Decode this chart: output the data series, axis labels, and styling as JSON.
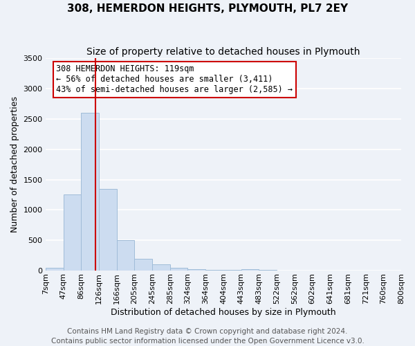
{
  "title": "308, HEMERDON HEIGHTS, PLYMOUTH, PL7 2EY",
  "subtitle": "Size of property relative to detached houses in Plymouth",
  "xlabel": "Distribution of detached houses by size in Plymouth",
  "ylabel": "Number of detached properties",
  "bar_color": "#ccdcf0",
  "bar_edge_color": "#a0bcd8",
  "bin_labels": [
    "7sqm",
    "47sqm",
    "86sqm",
    "126sqm",
    "166sqm",
    "205sqm",
    "245sqm",
    "285sqm",
    "324sqm",
    "364sqm",
    "404sqm",
    "443sqm",
    "483sqm",
    "522sqm",
    "562sqm",
    "602sqm",
    "641sqm",
    "681sqm",
    "721sqm",
    "760sqm",
    "800sqm"
  ],
  "bar_heights": [
    50,
    1250,
    2600,
    1350,
    500,
    200,
    110,
    50,
    30,
    15,
    10,
    30,
    10,
    0,
    0,
    0,
    0,
    0,
    0,
    0,
    0
  ],
  "bin_edges": [
    7,
    47,
    86,
    126,
    166,
    205,
    245,
    285,
    324,
    364,
    404,
    443,
    483,
    522,
    562,
    602,
    641,
    681,
    721,
    760,
    800
  ],
  "red_line_x": 119,
  "ylim": [
    0,
    3500
  ],
  "yticks": [
    0,
    500,
    1000,
    1500,
    2000,
    2500,
    3000,
    3500
  ],
  "annotation_title": "308 HEMERDON HEIGHTS: 119sqm",
  "annotation_line1": "← 56% of detached houses are smaller (3,411)",
  "annotation_line2": "43% of semi-detached houses are larger (2,585) →",
  "footer1": "Contains HM Land Registry data © Crown copyright and database right 2024.",
  "footer2": "Contains public sector information licensed under the Open Government Licence v3.0.",
  "background_color": "#eef2f8",
  "grid_color": "#ffffff",
  "annotation_box_facecolor": "#ffffff",
  "annotation_box_edgecolor": "#cc0000",
  "red_line_color": "#cc0000",
  "title_fontsize": 11,
  "subtitle_fontsize": 10,
  "axis_label_fontsize": 9,
  "tick_fontsize": 8,
  "annotation_fontsize": 8.5,
  "footer_fontsize": 7.5
}
